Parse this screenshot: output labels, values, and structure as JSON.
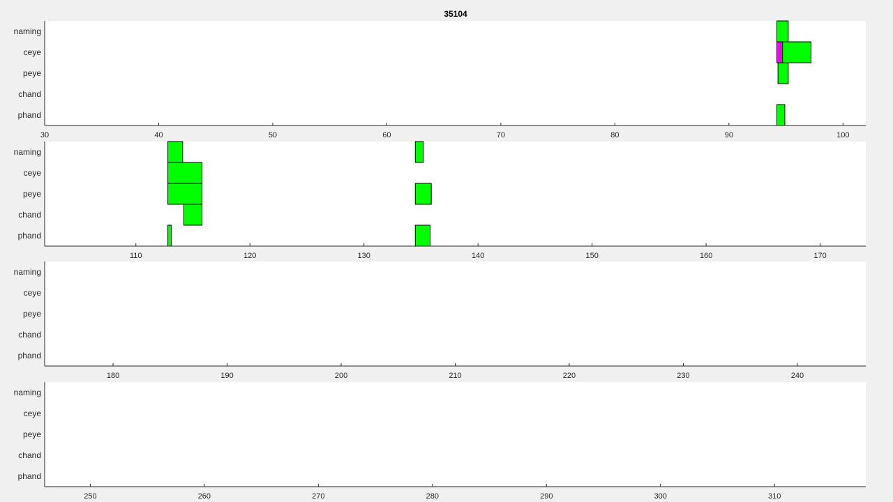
{
  "chart_data": {
    "type": "timeline",
    "title": "35104",
    "rows": [
      "naming",
      "ceye",
      "peye",
      "chand",
      "phand"
    ],
    "panels": [
      {
        "xlim": [
          30,
          102
        ],
        "ticks": [
          30,
          40,
          50,
          60,
          70,
          80,
          90,
          100
        ],
        "events": [
          {
            "row": "naming",
            "start": 94.2,
            "end": 95.2,
            "color": "#00ff00"
          },
          {
            "row": "ceye",
            "start": 94.2,
            "end": 94.6,
            "color": "#ff00ff"
          },
          {
            "row": "ceye",
            "start": 94.7,
            "end": 97.2,
            "color": "#00ff00"
          },
          {
            "row": "peye",
            "start": 94.3,
            "end": 95.2,
            "color": "#00ff00"
          },
          {
            "row": "phand",
            "start": 94.2,
            "end": 94.9,
            "color": "#00ff00"
          }
        ]
      },
      {
        "xlim": [
          102,
          174
        ],
        "ticks": [
          110,
          120,
          130,
          140,
          150,
          160,
          170
        ],
        "events": [
          {
            "row": "naming",
            "start": 112.8,
            "end": 114.1,
            "color": "#00ff00"
          },
          {
            "row": "naming",
            "start": 134.5,
            "end": 135.2,
            "color": "#00ff00"
          },
          {
            "row": "ceye",
            "start": 112.8,
            "end": 115.8,
            "color": "#00ff00"
          },
          {
            "row": "peye",
            "start": 112.8,
            "end": 115.8,
            "color": "#00ff00"
          },
          {
            "row": "peye",
            "start": 134.5,
            "end": 135.9,
            "color": "#00ff00"
          },
          {
            "row": "chand",
            "start": 114.2,
            "end": 115.8,
            "color": "#00ff00"
          },
          {
            "row": "phand",
            "start": 112.8,
            "end": 113.1,
            "color": "#00ff00"
          },
          {
            "row": "phand",
            "start": 134.5,
            "end": 135.8,
            "color": "#00ff00"
          }
        ]
      },
      {
        "xlim": [
          174,
          246
        ],
        "ticks": [
          180,
          190,
          200,
          210,
          220,
          230,
          240
        ],
        "events": []
      },
      {
        "xlim": [
          246,
          318
        ],
        "ticks": [
          250,
          260,
          270,
          280,
          290,
          300,
          310
        ],
        "events": []
      }
    ]
  }
}
